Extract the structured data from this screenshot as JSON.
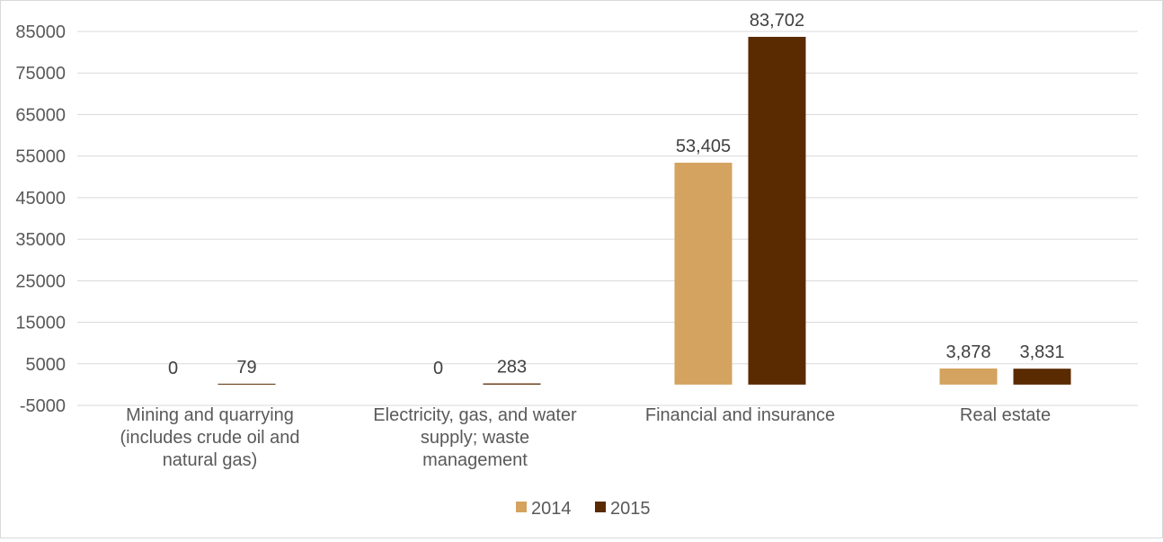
{
  "chart_data": {
    "type": "bar",
    "categories": [
      [
        "Mining and quarrying",
        "(includes crude oil and",
        "natural gas)"
      ],
      [
        "Electricity, gas, and water",
        "supply; waste",
        "management"
      ],
      [
        "Financial and insurance"
      ],
      [
        "Real estate"
      ]
    ],
    "series": [
      {
        "name": "2014",
        "color": "#d3a35f",
        "values": [
          0,
          0,
          53405,
          3878
        ],
        "labels": [
          "0",
          "0",
          "53,405",
          "3,878"
        ]
      },
      {
        "name": "2015",
        "color": "#5a2a00",
        "values": [
          79,
          283,
          83702,
          3831
        ],
        "labels": [
          "79",
          "283",
          "83,702",
          "3,831"
        ]
      }
    ],
    "y_ticks": [
      "85000",
      "75000",
      "65000",
      "55000",
      "45000",
      "35000",
      "25000",
      "15000",
      "5000",
      "-5000"
    ],
    "ylim": [
      -5000,
      85000
    ],
    "grid": true,
    "legend_position": "bottom"
  }
}
